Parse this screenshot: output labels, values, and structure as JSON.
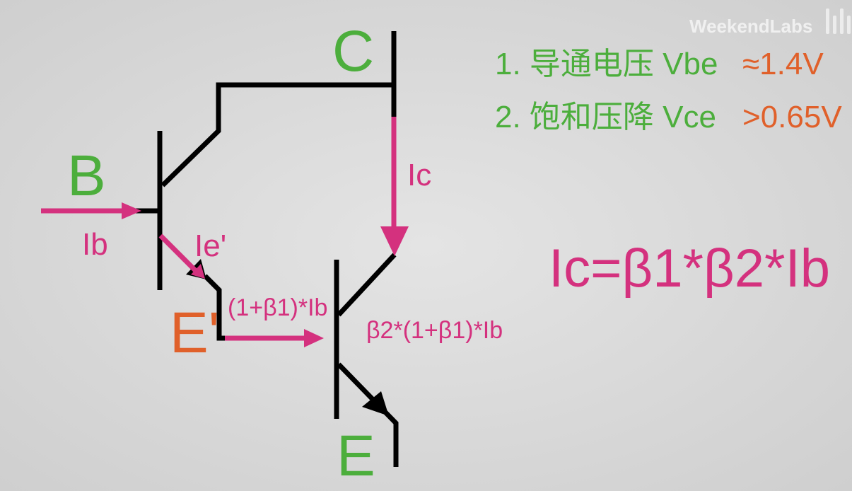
{
  "watermark": {
    "text": "WeekendLabs",
    "logo": "bilibili-logo"
  },
  "terminals": {
    "collector": "C",
    "base": "B",
    "emitter": "E",
    "inner_emitter": "E'"
  },
  "currents": {
    "ib": "Ib",
    "ie_prime": "Ie'",
    "ic": "Ic",
    "mid_current": "(1+β1)*Ib",
    "out_current": "β2*(1+β1)*Ib"
  },
  "notes": [
    {
      "label": "1. 导通电压 Vbe",
      "value": "≈1.4V"
    },
    {
      "label": "2. 饱和压降 Vce",
      "value": ">0.65V"
    }
  ],
  "formula": "Ic=β1*β2*Ib",
  "colors": {
    "background": "#d6d6d6",
    "wire": "#000000",
    "current": "#d4317e",
    "terminal": "#4cae3c",
    "inner_terminal": "#e0602a",
    "note_label": "#4cae3c",
    "note_value": "#e0602a",
    "watermark": "#f2f2f2"
  }
}
